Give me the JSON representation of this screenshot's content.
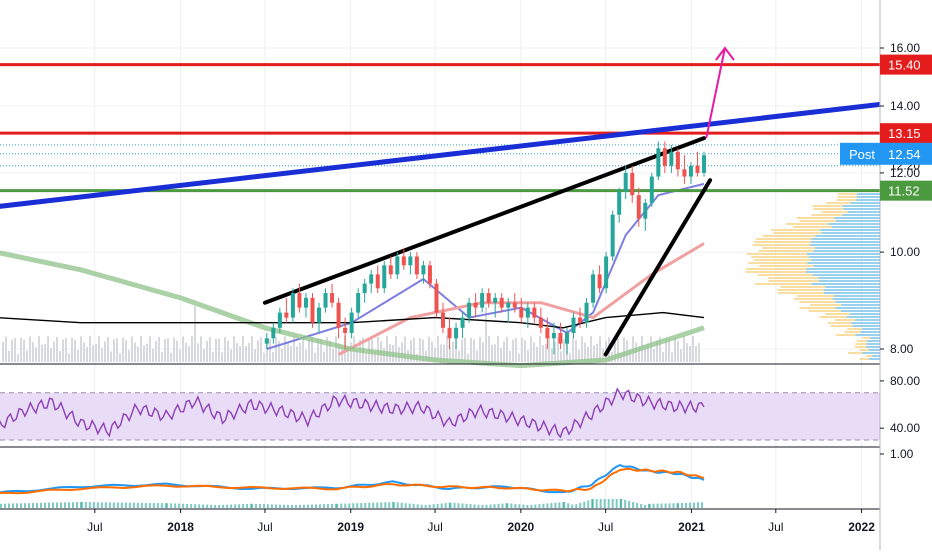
{
  "chart_data": [
    {
      "panel": "price",
      "type": "candlestick",
      "scale": "log",
      "y_ticks": [
        "16.00",
        "14.00",
        "12.00",
        "10.00",
        "8.00"
      ],
      "ylim": [
        7.8,
        17.0
      ],
      "horizontal_levels": [
        {
          "value": 15.4,
          "label": "15.40",
          "color": "#e51c1c"
        },
        {
          "value": 13.15,
          "label": "13.15",
          "color": "#e51c1c"
        },
        {
          "value": 11.52,
          "label": "11.52",
          "color": "#4c9a3f"
        }
      ],
      "dotted_levels": [
        {
          "value": 12.8,
          "color": "#2aa5c9"
        },
        {
          "value": 12.54,
          "color": "#2aa5c9"
        },
        {
          "value": 12.2,
          "color": "#2aa5c9"
        }
      ],
      "post_badge": {
        "text": "Post",
        "value": "12.54",
        "color": "#2196f3"
      },
      "partial_tick": "12.20",
      "candles": [
        [
          "2018-07-05",
          8.1,
          8.3,
          8.0,
          8.2
        ],
        [
          "2018-07-19",
          8.2,
          8.5,
          8.1,
          8.4
        ],
        [
          "2018-08-02",
          8.4,
          8.8,
          8.3,
          8.7
        ],
        [
          "2018-08-16",
          8.7,
          9.0,
          8.5,
          8.6
        ],
        [
          "2018-08-30",
          8.6,
          9.2,
          8.5,
          9.1
        ],
        [
          "2018-09-13",
          9.1,
          9.3,
          8.7,
          8.8
        ],
        [
          "2018-09-27",
          8.8,
          9.1,
          8.6,
          9.0
        ],
        [
          "2018-10-11",
          9.0,
          9.1,
          8.4,
          8.5
        ],
        [
          "2018-10-25",
          8.5,
          8.9,
          8.3,
          8.8
        ],
        [
          "2018-11-08",
          8.8,
          9.2,
          8.7,
          9.1
        ],
        [
          "2018-11-22",
          9.1,
          9.3,
          8.8,
          8.9
        ],
        [
          "2018-12-06",
          8.9,
          9.0,
          8.2,
          8.4
        ],
        [
          "2018-12-20",
          8.4,
          8.6,
          8.0,
          8.3
        ],
        [
          "2019-01-03",
          8.3,
          8.8,
          8.2,
          8.7
        ],
        [
          "2019-01-17",
          8.7,
          9.2,
          8.6,
          9.1
        ],
        [
          "2019-01-31",
          9.1,
          9.4,
          8.9,
          9.3
        ],
        [
          "2019-02-14",
          9.3,
          9.6,
          9.1,
          9.5
        ],
        [
          "2019-02-28",
          9.5,
          9.7,
          9.1,
          9.2
        ],
        [
          "2019-03-14",
          9.2,
          9.8,
          9.1,
          9.7
        ],
        [
          "2019-03-28",
          9.7,
          9.9,
          9.4,
          9.5
        ],
        [
          "2019-04-11",
          9.5,
          10.0,
          9.4,
          9.9
        ],
        [
          "2019-04-25",
          9.9,
          10.1,
          9.6,
          9.7
        ],
        [
          "2019-05-09",
          9.7,
          10.0,
          9.5,
          9.9
        ],
        [
          "2019-05-23",
          9.9,
          10.0,
          9.4,
          9.5
        ],
        [
          "2019-06-06",
          9.5,
          9.8,
          9.3,
          9.7
        ],
        [
          "2019-06-20",
          9.7,
          9.8,
          9.2,
          9.3
        ],
        [
          "2019-07-04",
          9.3,
          9.4,
          8.6,
          8.7
        ],
        [
          "2019-07-18",
          8.7,
          8.9,
          8.3,
          8.4
        ],
        [
          "2019-08-01",
          8.4,
          8.6,
          8.0,
          8.2
        ],
        [
          "2019-08-15",
          8.2,
          8.5,
          8.0,
          8.4
        ],
        [
          "2019-08-29",
          8.4,
          8.7,
          8.2,
          8.6
        ],
        [
          "2019-09-12",
          8.6,
          9.0,
          8.5,
          8.9
        ],
        [
          "2019-09-26",
          8.9,
          9.1,
          8.6,
          8.8
        ],
        [
          "2019-10-10",
          8.8,
          9.2,
          8.7,
          9.1
        ],
        [
          "2019-10-24",
          9.1,
          9.2,
          8.8,
          8.9
        ],
        [
          "2019-11-07",
          8.9,
          9.1,
          8.6,
          9.0
        ],
        [
          "2019-11-21",
          9.0,
          9.1,
          8.7,
          8.8
        ],
        [
          "2019-12-05",
          8.8,
          9.0,
          8.5,
          8.9
        ],
        [
          "2019-12-19",
          8.9,
          9.1,
          8.7,
          8.8
        ],
        [
          "2020-01-02",
          8.8,
          9.0,
          8.5,
          8.6
        ],
        [
          "2020-01-16",
          8.6,
          8.9,
          8.4,
          8.8
        ],
        [
          "2020-01-30",
          8.8,
          8.9,
          8.5,
          8.6
        ],
        [
          "2020-02-13",
          8.6,
          8.8,
          8.3,
          8.4
        ],
        [
          "2020-02-27",
          8.4,
          8.6,
          8.0,
          8.2
        ],
        [
          "2020-03-12",
          8.2,
          8.5,
          7.9,
          8.3
        ],
        [
          "2020-03-26",
          8.3,
          8.5,
          8.0,
          8.1
        ],
        [
          "2020-04-09",
          8.1,
          8.4,
          7.9,
          8.3
        ],
        [
          "2020-04-23",
          8.3,
          8.7,
          8.2,
          8.6
        ],
        [
          "2020-05-07",
          8.6,
          8.8,
          8.4,
          8.5
        ],
        [
          "2020-05-21",
          8.5,
          9.0,
          8.4,
          8.9
        ],
        [
          "2020-06-04",
          8.9,
          9.6,
          8.8,
          9.5
        ],
        [
          "2020-06-18",
          9.5,
          9.7,
          9.1,
          9.2
        ],
        [
          "2020-07-02",
          9.2,
          10.0,
          9.1,
          9.9
        ],
        [
          "2020-07-16",
          9.9,
          11.0,
          9.8,
          10.9
        ],
        [
          "2020-07-30",
          10.9,
          11.6,
          10.7,
          11.5
        ],
        [
          "2020-08-13",
          11.5,
          12.2,
          11.3,
          12.0
        ],
        [
          "2020-08-27",
          12.0,
          12.2,
          11.2,
          11.4
        ],
        [
          "2020-09-10",
          11.4,
          11.6,
          10.6,
          10.8
        ],
        [
          "2020-09-24",
          10.8,
          11.3,
          10.5,
          11.2
        ],
        [
          "2020-10-08",
          11.2,
          12.0,
          11.1,
          11.9
        ],
        [
          "2020-10-22",
          11.9,
          12.9,
          11.8,
          12.7
        ],
        [
          "2020-11-05",
          12.7,
          12.9,
          12.0,
          12.2
        ],
        [
          "2020-11-19",
          12.2,
          12.8,
          12.0,
          12.6
        ],
        [
          "2020-12-03",
          12.6,
          12.7,
          11.9,
          12.1
        ],
        [
          "2020-12-17",
          12.1,
          12.5,
          11.7,
          11.9
        ],
        [
          "2020-12-31",
          11.9,
          12.3,
          11.7,
          12.2
        ],
        [
          "2021-01-14",
          12.2,
          12.6,
          11.9,
          12.0
        ],
        [
          "2021-01-28",
          12.0,
          12.6,
          11.9,
          12.5
        ]
      ],
      "moving_averages": [
        {
          "color": "#7e7ee0",
          "points": [
            [
              "2018-07-05",
              8.0
            ],
            [
              "2019-01-03",
              8.5
            ],
            [
              "2019-06-06",
              9.4
            ],
            [
              "2019-09-12",
              8.6
            ],
            [
              "2020-01-02",
              8.8
            ],
            [
              "2020-04-09",
              8.3
            ],
            [
              "2020-06-04",
              8.7
            ],
            [
              "2020-08-13",
              10.4
            ],
            [
              "2020-10-22",
              11.4
            ],
            [
              "2021-01-28",
              11.7
            ]
          ]
        },
        {
          "color": "#f0a0a0",
          "points": [
            [
              "2018-12-06",
              7.9
            ],
            [
              "2019-05-09",
              8.6
            ],
            [
              "2019-10-10",
              8.9
            ],
            [
              "2020-02-13",
              8.9
            ],
            [
              "2020-06-04",
              8.6
            ],
            [
              "2020-10-08",
              9.5
            ],
            [
              "2021-01-28",
              10.2
            ]
          ]
        },
        {
          "color": "#8fc18a",
          "points": [
            [
              "2016-12-01",
              10.0
            ],
            [
              "2017-06-01",
              9.6
            ],
            [
              "2018-01-01",
              9.0
            ],
            [
              "2018-07-01",
              8.4
            ],
            [
              "2019-01-01",
              8.0
            ],
            [
              "2019-07-01",
              7.8
            ],
            [
              "2020-01-01",
              7.7
            ],
            [
              "2020-07-01",
              7.8
            ],
            [
              "2021-01-28",
              8.4
            ]
          ]
        },
        {
          "color": "#000000",
          "points": [
            [
              "2016-12-01",
              8.6
            ],
            [
              "2017-06-01",
              8.5
            ],
            [
              "2018-01-01",
              8.5
            ],
            [
              "2018-07-01",
              8.5
            ],
            [
              "2019-01-01",
              8.5
            ],
            [
              "2019-07-01",
              8.6
            ],
            [
              "2020-01-01",
              8.5
            ],
            [
              "2020-04-01",
              8.4
            ],
            [
              "2020-07-01",
              8.6
            ],
            [
              "2020-11-01",
              8.7
            ],
            [
              "2021-01-28",
              8.6
            ]
          ]
        }
      ],
      "trendlines": [
        {
          "color": "#1a2ed6",
          "from": [
            "2016-12-01",
            11.1
          ],
          "to": [
            "2022-07-01",
            14.3
          ]
        },
        {
          "color": "#000000",
          "from": [
            "2018-07-01",
            8.9
          ],
          "to": [
            "2021-01-28",
            13.0
          ]
        },
        {
          "color": "#000000",
          "from": [
            "2020-07-01",
            7.9
          ],
          "to": [
            "2021-02-10",
            11.8
          ]
        }
      ],
      "projection_arrow": {
        "color": "#e619a3",
        "from": [
          "2021-01-20",
          13.0
        ],
        "to": [
          "2021-03-01",
          16.0
        ]
      },
      "volume_profile": {
        "side": "right",
        "colors": [
          "#f8d58a",
          "#7fc4e8"
        ]
      }
    },
    {
      "panel": "rsi",
      "type": "line",
      "y_ticks": [
        "80.00",
        "40.00"
      ],
      "ylim": [
        25,
        90
      ],
      "band": [
        30,
        70
      ],
      "color": "#8e3fb5",
      "band_color": "#e8dcf7",
      "x": [
        "2016-12-01",
        "2017-02-01",
        "2017-04-01",
        "2017-06-01",
        "2017-08-01",
        "2017-10-01",
        "2017-12-01",
        "2018-02-01",
        "2018-04-01",
        "2018-06-01",
        "2018-08-01",
        "2018-10-01",
        "2018-12-01",
        "2019-02-01",
        "2019-04-01",
        "2019-06-01",
        "2019-08-01",
        "2019-10-01",
        "2019-12-01",
        "2020-02-01",
        "2020-04-01",
        "2020-06-01",
        "2020-08-01",
        "2020-10-01",
        "2020-12-01",
        "2021-01-28"
      ],
      "values": [
        41,
        55,
        62,
        44,
        38,
        57,
        50,
        63,
        48,
        60,
        55,
        47,
        64,
        60,
        56,
        58,
        44,
        55,
        50,
        43,
        36,
        52,
        70,
        62,
        58,
        58
      ]
    },
    {
      "panel": "macd",
      "type": "line+histogram",
      "y_ticks": [
        "1.00"
      ],
      "ylim": [
        -0.5,
        1.0
      ],
      "series": [
        {
          "color": "#2196f3",
          "x": [
            "2016-12-01",
            "2017-06-01",
            "2017-12-01",
            "2018-06-01",
            "2018-12-01",
            "2019-04-01",
            "2019-08-01",
            "2019-12-01",
            "2020-04-01",
            "2020-06-01",
            "2020-08-01",
            "2020-10-01",
            "2020-12-01",
            "2021-01-28"
          ],
          "values": [
            0.1,
            0.25,
            0.3,
            0.2,
            0.22,
            0.35,
            0.2,
            0.25,
            0.1,
            0.3,
            0.75,
            0.6,
            0.55,
            0.4
          ]
        },
        {
          "color": "#ff6d00",
          "x": [
            "2016-12-01",
            "2017-06-01",
            "2017-12-01",
            "2018-06-01",
            "2018-12-01",
            "2019-04-01",
            "2019-08-01",
            "2019-12-01",
            "2020-04-01",
            "2020-06-01",
            "2020-08-01",
            "2020-10-01",
            "2020-12-01",
            "2021-01-28"
          ],
          "values": [
            0.08,
            0.2,
            0.27,
            0.22,
            0.2,
            0.3,
            0.24,
            0.22,
            0.15,
            0.2,
            0.65,
            0.62,
            0.58,
            0.45
          ]
        }
      ],
      "histogram_color": "#26a69a"
    }
  ],
  "x_axis": {
    "ticks": [
      {
        "date": "2017-07-01",
        "label": "Jul",
        "bold": false
      },
      {
        "date": "2018-01-01",
        "label": "2018",
        "bold": true
      },
      {
        "date": "2018-07-01",
        "label": "Jul",
        "bold": false
      },
      {
        "date": "2019-01-01",
        "label": "2019",
        "bold": true
      },
      {
        "date": "2019-07-01",
        "label": "Jul",
        "bold": false
      },
      {
        "date": "2020-01-01",
        "label": "2020",
        "bold": true
      },
      {
        "date": "2020-07-01",
        "label": "Jul",
        "bold": false
      },
      {
        "date": "2021-01-01",
        "label": "2021",
        "bold": true
      },
      {
        "date": "2021-07-01",
        "label": "Jul",
        "bold": false
      },
      {
        "date": "2022-01-01",
        "label": "2022",
        "bold": true
      }
    ],
    "range": [
      "2016-12-01",
      "2022-02-01"
    ]
  },
  "colors": {
    "up": "#26a69a",
    "down": "#ef5350",
    "axis_text": "#131722",
    "grid": "#eef0f5"
  }
}
